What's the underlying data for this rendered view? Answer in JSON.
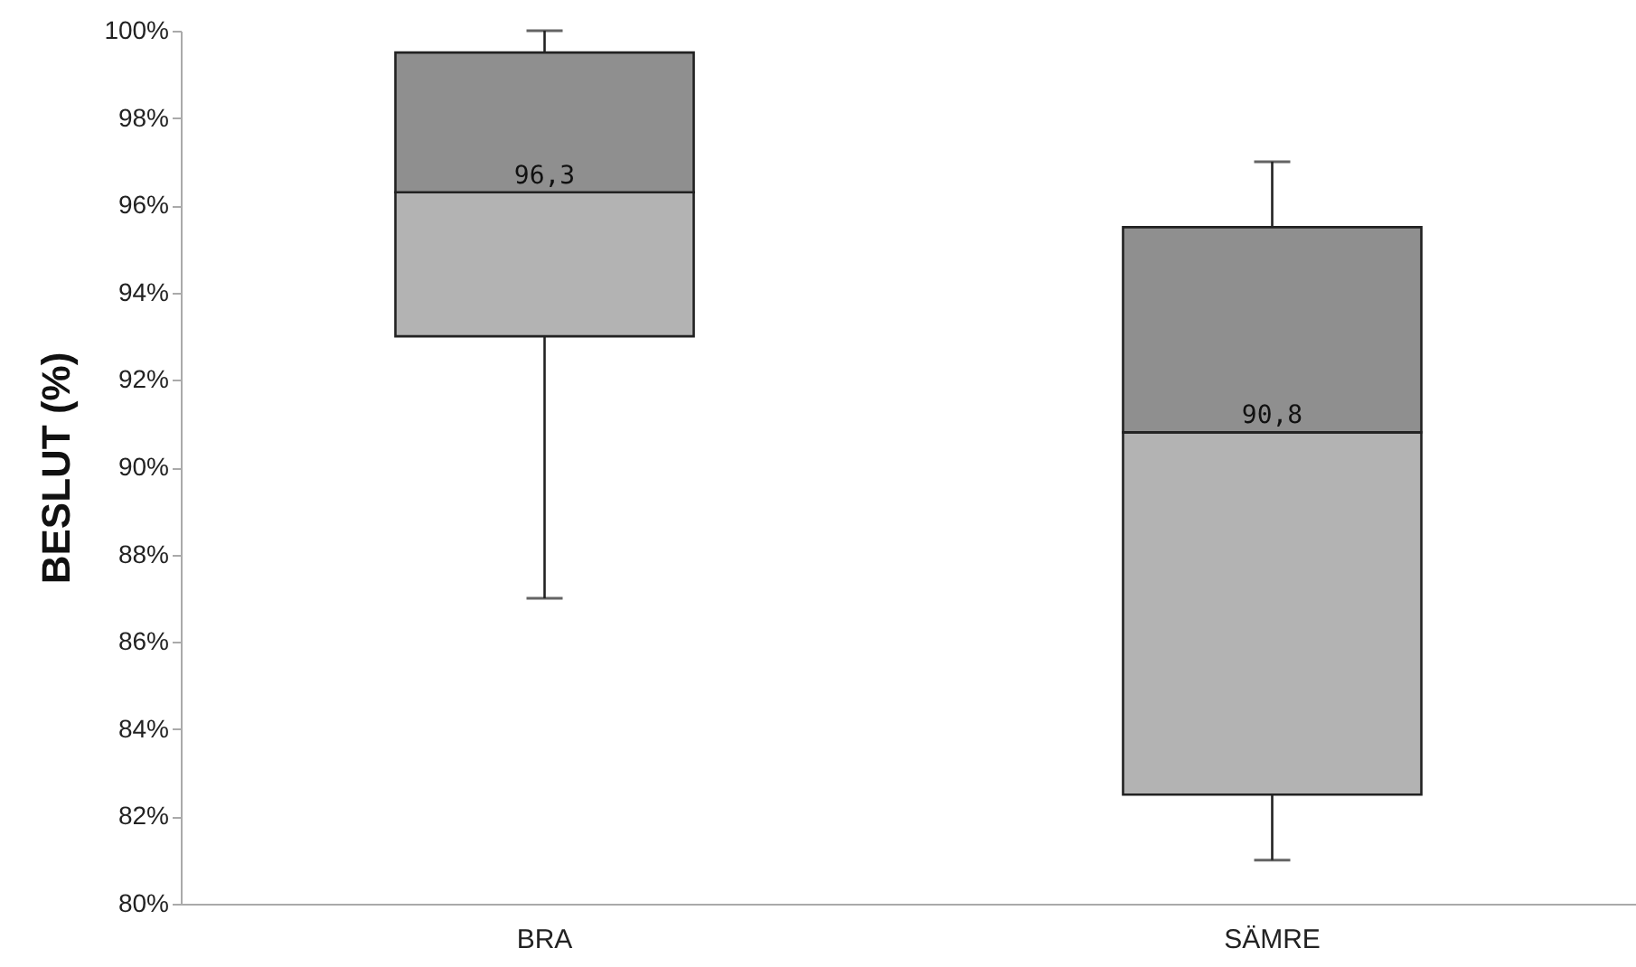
{
  "chart_data": {
    "type": "box",
    "ylabel": "BESLUT (%)",
    "categories": [
      "BRA",
      "SÄMRE"
    ],
    "boxes": [
      {
        "low": 87,
        "q1": 93,
        "median": 96.3,
        "q3": 99.5,
        "high": 100
      },
      {
        "low": 81,
        "q1": 82.5,
        "median": 90.8,
        "q3": 95.5,
        "high": 97
      }
    ],
    "colors": [
      "#b3b3b3",
      "#b3b3b3"
    ],
    "ylim": [
      80,
      100
    ],
    "yticks": [
      {
        "value": 80,
        "label": "80%"
      },
      {
        "value": 82,
        "label": "82%"
      },
      {
        "value": 84,
        "label": "84%"
      },
      {
        "value": 86,
        "label": "86%"
      },
      {
        "value": 88,
        "label": "88%"
      },
      {
        "value": 90,
        "label": "90%"
      },
      {
        "value": 92,
        "label": "92%"
      },
      {
        "value": 94,
        "label": "94%"
      },
      {
        "value": 96,
        "label": "96%"
      },
      {
        "value": 98,
        "label": "98%"
      },
      {
        "value": 100,
        "label": "100%"
      }
    ],
    "annotations": [
      {
        "text": "96,3",
        "x": "BRA",
        "y": 96.3
      },
      {
        "text": "90,8",
        "x": "SÄMRE",
        "y": 90.8
      }
    ],
    "grid": false
  }
}
